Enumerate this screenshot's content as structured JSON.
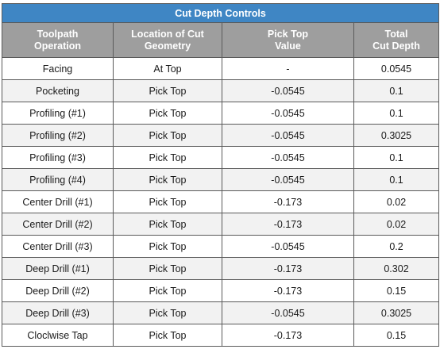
{
  "table": {
    "title": "Cut Depth Controls",
    "headers": [
      [
        "Toolpath",
        "Operation"
      ],
      [
        "Location of Cut",
        "Geometry"
      ],
      [
        "Pick Top",
        "Value"
      ],
      [
        "Total",
        "Cut Depth"
      ]
    ],
    "rows": [
      [
        "Facing",
        "At Top",
        "-",
        "0.0545"
      ],
      [
        "Pocketing",
        "Pick Top",
        "-0.0545",
        "0.1"
      ],
      [
        "Profiling (#1)",
        "Pick Top",
        "-0.0545",
        "0.1"
      ],
      [
        "Profiling (#2)",
        "Pick Top",
        "-0.0545",
        "0.3025"
      ],
      [
        "Profiling (#3)",
        "Pick Top",
        "-0.0545",
        "0.1"
      ],
      [
        "Profiling (#4)",
        "Pick Top",
        "-0.0545",
        "0.1"
      ],
      [
        "Center Drill (#1)",
        "Pick Top",
        "-0.173",
        "0.02"
      ],
      [
        "Center Drill (#2)",
        "Pick Top",
        "-0.173",
        "0.02"
      ],
      [
        "Center Drill (#3)",
        "Pick Top",
        "-0.0545",
        "0.2"
      ],
      [
        "Deep Drill (#1)",
        "Pick Top",
        "-0.173",
        "0.302"
      ],
      [
        "Deep Drill (#2)",
        "Pick Top",
        "-0.173",
        "0.15"
      ],
      [
        "Deep Drill (#3)",
        "Pick Top",
        "-0.0545",
        "0.3025"
      ],
      [
        "Cloclwise Tap",
        "Pick Top",
        "-0.173",
        "0.15"
      ]
    ]
  },
  "colors": {
    "title_bg": "#3f86c4",
    "header_bg": "#9e9e9e",
    "alt_row_bg": "#f2f2f2",
    "border": "#5a5a5a"
  }
}
